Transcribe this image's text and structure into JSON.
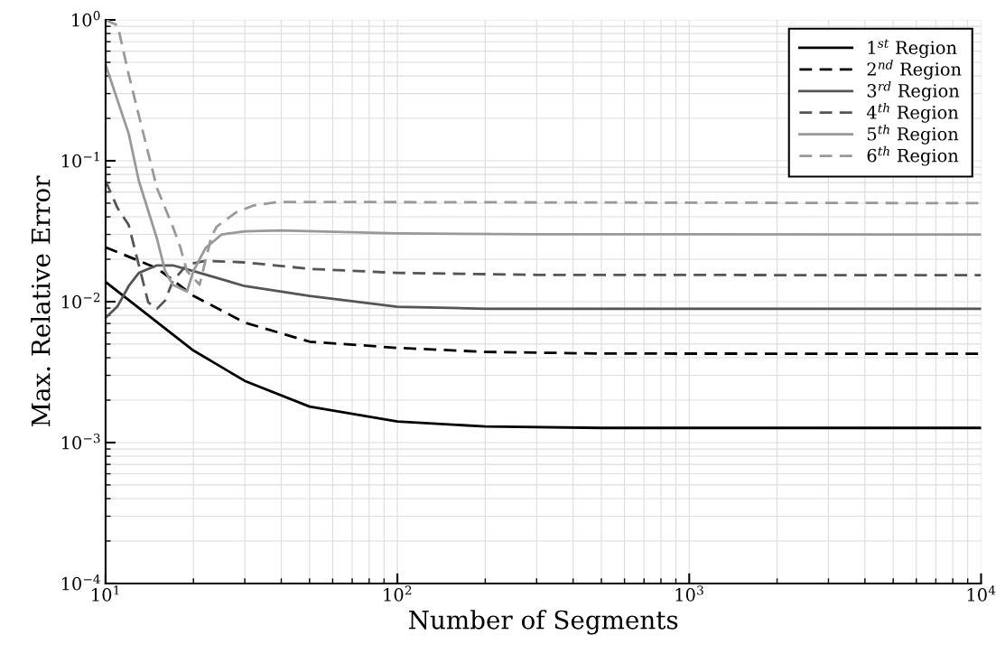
{
  "chart_data": {
    "type": "line",
    "xlabel": "Number of Segments",
    "ylabel": "Max. Relative Error",
    "log": "xy",
    "grid": true,
    "legend": "top right",
    "xlim": [
      10,
      10000
    ],
    "ylim": [
      0.0001,
      1
    ],
    "xticks": [
      {
        "value": 10,
        "label": "10$^{1}$"
      },
      {
        "value": 100,
        "label": "10$^{2}$"
      },
      {
        "value": 1000,
        "label": "10$^{3}$"
      },
      {
        "value": 10000,
        "label": "10$^{4}$"
      }
    ],
    "yticks": [
      {
        "value": 0.0001,
        "label": "10$^{−4}$"
      },
      {
        "value": 0.001,
        "label": "10$^{−3}$"
      },
      {
        "value": 0.01,
        "label": "10$^{−2}$"
      },
      {
        "value": 0.1,
        "label": "10$^{−1}$"
      },
      {
        "value": 1,
        "label": "10$^{0}$"
      }
    ],
    "series": [
      {
        "name": "1$^{st}$ Region",
        "color": "#000000",
        "line_style": "solid",
        "x": [
          10,
          20,
          30,
          50,
          100,
          200,
          500,
          10000
        ],
        "values": [
          0.0138,
          0.0045,
          0.00274,
          0.0018,
          0.00141,
          0.0013,
          0.00127,
          0.00127
        ]
      },
      {
        "name": "2$^{nd}$ Region",
        "color": "#000000",
        "line_style": "dashed",
        "x": [
          10,
          15,
          20,
          30,
          50,
          100,
          200,
          500,
          10000
        ],
        "values": [
          0.0243,
          0.0173,
          0.011,
          0.0071,
          0.0052,
          0.0047,
          0.0044,
          0.00428,
          0.00427
        ]
      },
      {
        "name": "3$^{rd}$ Region",
        "color": "#555555",
        "line_style": "solid",
        "x": [
          10,
          11,
          12,
          13,
          15,
          17,
          20,
          30,
          50,
          100,
          200,
          500,
          10000
        ],
        "values": [
          0.0077,
          0.0093,
          0.0129,
          0.016,
          0.0181,
          0.0181,
          0.0165,
          0.0129,
          0.011,
          0.0092,
          0.0089,
          0.0089,
          0.0089
        ]
      },
      {
        "name": "4$^{th}$ Region",
        "color": "#555555",
        "line_style": "dashed",
        "x": [
          10,
          11,
          12,
          14,
          15,
          16,
          17,
          19,
          22,
          30,
          50,
          100,
          300,
          10000
        ],
        "values": [
          0.072,
          0.046,
          0.035,
          0.0099,
          0.0089,
          0.0102,
          0.014,
          0.0183,
          0.0195,
          0.019,
          0.0171,
          0.016,
          0.0155,
          0.0154
        ]
      },
      {
        "name": "5$^{th}$ Region",
        "color": "#999999",
        "line_style": "solid",
        "x": [
          10,
          12,
          13,
          15,
          16,
          17,
          19,
          20,
          22,
          25,
          30,
          40,
          100,
          300,
          10000
        ],
        "values": [
          0.48,
          0.156,
          0.072,
          0.028,
          0.0165,
          0.0132,
          0.0118,
          0.0165,
          0.024,
          0.03,
          0.0316,
          0.032,
          0.0305,
          0.0301,
          0.03
        ]
      },
      {
        "name": "6$^{th}$ Region",
        "color": "#999999",
        "line_style": "dashed",
        "x": [
          10,
          11,
          12,
          13,
          15,
          17,
          18,
          19,
          21,
          23,
          24,
          28,
          32,
          39,
          60,
          10000
        ],
        "values": [
          1.0,
          0.915,
          0.41,
          0.21,
          0.064,
          0.034,
          0.0246,
          0.0165,
          0.0132,
          0.0285,
          0.034,
          0.043,
          0.048,
          0.051,
          0.051,
          0.05
        ]
      }
    ]
  }
}
